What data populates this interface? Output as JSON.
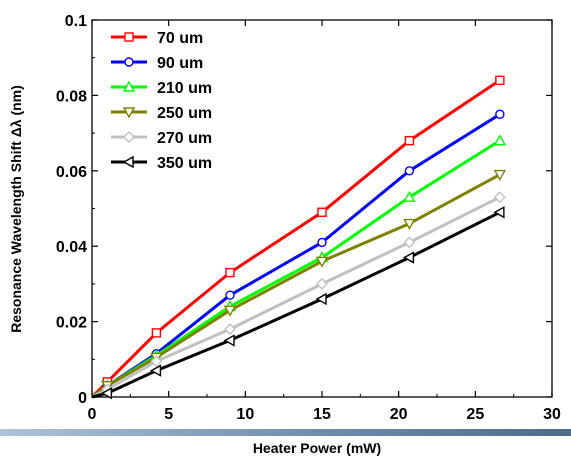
{
  "chart_data": {
    "type": "line",
    "xlabel": "Heater Power (mW)",
    "ylabel": "Resonance Wavelength Shift Δλ (nm)",
    "xlim": [
      0,
      30
    ],
    "ylim": [
      0,
      0.1
    ],
    "x_ticks": [
      0,
      5,
      10,
      15,
      20,
      25,
      30
    ],
    "x_tick_labels": [
      "0",
      "5",
      "10",
      "15",
      "20",
      "25",
      "30"
    ],
    "y_ticks": [
      0,
      0.02,
      0.04,
      0.06,
      0.08,
      0.1
    ],
    "y_tick_labels": [
      "0",
      "0.02",
      "0.04",
      "0.06",
      "0.08",
      "0.1"
    ],
    "grid": false,
    "legend_position": "top-left",
    "series": [
      {
        "name": "70 um",
        "color": "#ff0000",
        "marker": "square",
        "x": [
          0,
          1.0,
          4.2,
          9.0,
          15.0,
          20.7,
          26.6
        ],
        "y": [
          0,
          0.004,
          0.017,
          0.033,
          0.049,
          0.068,
          0.084
        ]
      },
      {
        "name": "90 um",
        "color": "#0000ff",
        "marker": "circle",
        "x": [
          0,
          1.0,
          4.2,
          9.0,
          15.0,
          20.7,
          26.6
        ],
        "y": [
          0,
          0.003,
          0.0115,
          0.027,
          0.041,
          0.06,
          0.075
        ]
      },
      {
        "name": "210 um",
        "color": "#00ff00",
        "marker": "triangle-up",
        "x": [
          0,
          1.0,
          4.2,
          9.0,
          15.0,
          20.7,
          26.6
        ],
        "y": [
          0,
          0.003,
          0.011,
          0.024,
          0.037,
          0.053,
          0.068
        ]
      },
      {
        "name": "250 um",
        "color": "#808000",
        "marker": "triangle-down",
        "x": [
          0,
          1.0,
          4.2,
          9.0,
          15.0,
          20.7,
          26.6
        ],
        "y": [
          0,
          0.003,
          0.0105,
          0.023,
          0.036,
          0.046,
          0.059
        ]
      },
      {
        "name": "270 um",
        "color": "#c0c0c0",
        "marker": "diamond",
        "x": [
          0,
          1.0,
          4.2,
          9.0,
          15.0,
          20.7,
          26.6
        ],
        "y": [
          0,
          0.002,
          0.0095,
          0.018,
          0.03,
          0.041,
          0.053
        ]
      },
      {
        "name": "350 um",
        "color": "#000000",
        "marker": "triangle-left",
        "x": [
          0,
          1.0,
          4.2,
          9.0,
          15.0,
          20.7,
          26.6
        ],
        "y": [
          0,
          0.001,
          0.007,
          0.015,
          0.026,
          0.037,
          0.049
        ]
      }
    ]
  }
}
